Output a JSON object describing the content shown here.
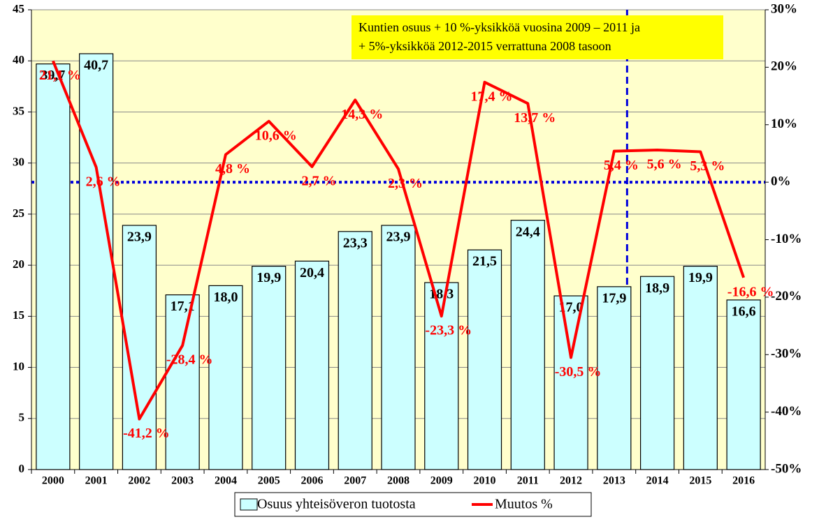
{
  "chart_data": {
    "type": "bar_line",
    "annotation": [
      "Kuntien osuus + 10 %-yksikköä vuosina 2009 – 2011 ja",
      "+ 5%-yksikköä 2012-2015 verrattuna 2008 tasoon"
    ],
    "categories": [
      "2000",
      "2001",
      "2002",
      "2003",
      "2004",
      "2005",
      "2006",
      "2007",
      "2008",
      "2009",
      "2010",
      "2011",
      "2012",
      "2013",
      "2014",
      "2015",
      "2016"
    ],
    "series": [
      {
        "name": "Osuus yhteisöveron tuotosta",
        "color": "#ccffff",
        "values": [
          39.7,
          40.7,
          23.9,
          17.1,
          18.0,
          19.9,
          20.4,
          23.3,
          23.9,
          18.3,
          21.5,
          24.4,
          17.0,
          17.9,
          18.9,
          19.9,
          16.6
        ],
        "value_labels": [
          "39,7",
          "40,7",
          "23,9",
          "17,1",
          "18,0",
          "19,9",
          "20,4",
          "23,3",
          "23,9",
          "18,3",
          "21,5",
          "24,4",
          "17,0",
          "17,9",
          "18,9",
          "19,9",
          "16,6"
        ]
      },
      {
        "name": "Muutos %",
        "color": "#ff0000",
        "axis": "y2",
        "values": [
          21.1,
          2.6,
          -41.2,
          -28.4,
          4.8,
          10.6,
          2.7,
          14.3,
          2.3,
          -23.3,
          17.4,
          13.7,
          -30.5,
          5.4,
          5.6,
          5.3,
          -16.6
        ],
        "value_labels": [
          "21,1 %",
          "2,6 %",
          "-41,2 %",
          "-28,4 %",
          "4,8 %",
          "10,6 %",
          "2,7 %",
          "14,3 %",
          "2,3 %",
          "-23,3 %",
          "17,4 %",
          "13,7 %",
          "-30,5 %",
          "5,4 %",
          "5,6 %",
          "5,3 %",
          "-16,6 %"
        ]
      }
    ],
    "ylim": [
      0,
      45
    ],
    "yticks": [
      0,
      5,
      10,
      15,
      20,
      25,
      30,
      35,
      40,
      45
    ],
    "y2lim": [
      -50,
      30
    ],
    "y2ticks": [
      {
        "value": -50,
        "label": "-50%"
      },
      {
        "value": -40,
        "label": "-40%"
      },
      {
        "value": -30,
        "label": "-30%"
      },
      {
        "value": -20,
        "label": "-20%"
      },
      {
        "value": -10,
        "label": "-10%"
      },
      {
        "value": 0,
        "label": "0%"
      },
      {
        "value": 10,
        "label": "10%"
      },
      {
        "value": 20,
        "label": "20%"
      },
      {
        "value": 30,
        "label": "30%"
      }
    ],
    "grid": true,
    "legend": "bottom"
  }
}
